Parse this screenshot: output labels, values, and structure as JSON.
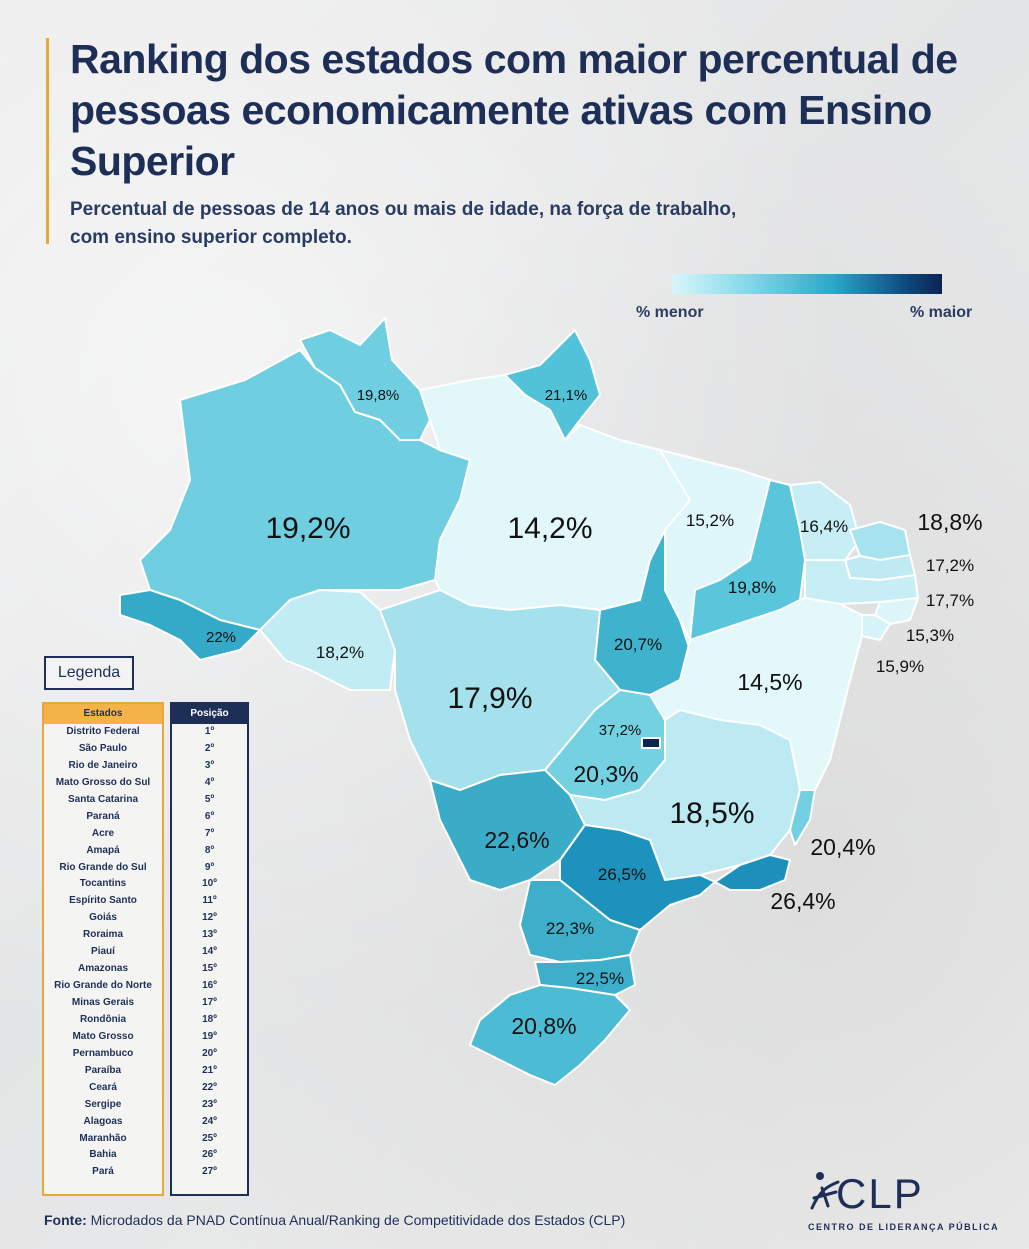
{
  "title": "Ranking dos estados com maior percentual de pessoas economicamente ativas com Ensino Superior",
  "subtitle_line1": "Percentual de pessoas de 14 anos ou mais de idade, na força de trabalho,",
  "subtitle_line2": "com ensino superior completo.",
  "scale": {
    "min_label": "% menor",
    "max_label": "% maior",
    "colors": [
      "#d8f6fb",
      "#7fd6e8",
      "#2aa7c7",
      "#0f4f84",
      "#0b2350"
    ]
  },
  "map_values": {
    "RR": "19,8%",
    "AP": "21,1%",
    "AM": "19,2%",
    "PA": "14,2%",
    "AC": "22%",
    "RO": "18,2%",
    "MT": "17,9%",
    "TO": "20,7%",
    "MA": "15,2%",
    "PI": "19,8%",
    "CE": "16,4%",
    "RN": "18,8%",
    "PB": "17,2%",
    "PE": "17,7%",
    "AL": "15,3%",
    "SE": "15,9%",
    "BA": "14,5%",
    "DF": "37,2%",
    "GO": "20,3%",
    "MG": "18,5%",
    "ES": "20,4%",
    "RJ": "26,4%",
    "SP": "26,5%",
    "MS": "22,6%",
    "PR": "22,3%",
    "SC": "22,5%",
    "RS": "20,8%"
  },
  "legend": {
    "title": "Legenda",
    "states_header": "Estados",
    "position_header": "Posição",
    "rows": [
      {
        "state": "Distrito Federal",
        "pos": "1º"
      },
      {
        "state": "São Paulo",
        "pos": "2º"
      },
      {
        "state": "Rio de Janeiro",
        "pos": "3º"
      },
      {
        "state": "Mato Grosso do Sul",
        "pos": "4º"
      },
      {
        "state": "Santa Catarina",
        "pos": "5º"
      },
      {
        "state": "Paraná",
        "pos": "6º"
      },
      {
        "state": "Acre",
        "pos": "7º"
      },
      {
        "state": "Amapá",
        "pos": "8º"
      },
      {
        "state": "Rio Grande do Sul",
        "pos": "9º"
      },
      {
        "state": "Tocantins",
        "pos": "10º"
      },
      {
        "state": "Espírito Santo",
        "pos": "11º"
      },
      {
        "state": "Goiás",
        "pos": "12º"
      },
      {
        "state": "Roraima",
        "pos": "13º"
      },
      {
        "state": "Piauí",
        "pos": "14º"
      },
      {
        "state": "Amazonas",
        "pos": "15º"
      },
      {
        "state": "Rio Grande do Norte",
        "pos": "16º"
      },
      {
        "state": "Minas Gerais",
        "pos": "17º"
      },
      {
        "state": "Rondônia",
        "pos": "18º"
      },
      {
        "state": "Mato Grosso",
        "pos": "19º"
      },
      {
        "state": "Pernambuco",
        "pos": "20º"
      },
      {
        "state": "Paraíba",
        "pos": "21º"
      },
      {
        "state": "Ceará",
        "pos": "22º"
      },
      {
        "state": "Sergipe",
        "pos": "23º"
      },
      {
        "state": "Alagoas",
        "pos": "24º"
      },
      {
        "state": "Maranhão",
        "pos": "25º"
      },
      {
        "state": "Bahia",
        "pos": "26º"
      },
      {
        "state": "Pará",
        "pos": "27º"
      }
    ]
  },
  "source_label": "Fonte:",
  "source_text": "Microdados da PNAD Contínua Anual/Ranking de Competitividade dos Estados (CLP)",
  "logo_text": "CLP",
  "logo_sub": "CENTRO DE LIDERANÇA PÚBLICA"
}
